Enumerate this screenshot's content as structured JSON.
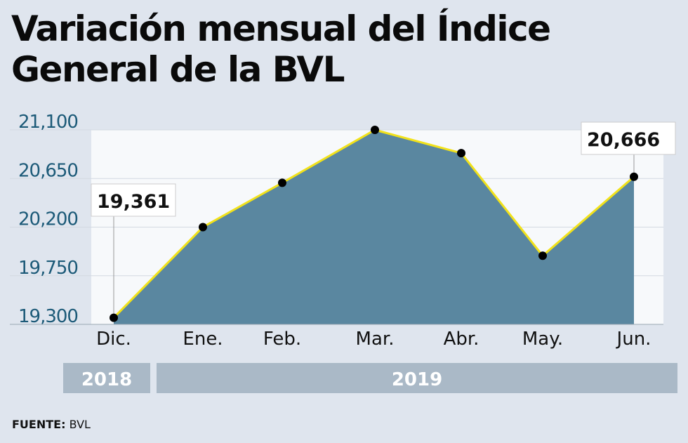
{
  "chart_data": {
    "type": "area",
    "title": "Variación mensual del Índice General de la BVL",
    "categories": [
      "Dic.",
      "Ene.",
      "Feb.",
      "Mar.",
      "Abr.",
      "May.",
      "Jun."
    ],
    "values": [
      19361,
      20200,
      20610,
      21100,
      20885,
      19935,
      20666
    ],
    "year_groups": [
      {
        "label": "2018",
        "categories": [
          "Dic."
        ]
      },
      {
        "label": "2019",
        "categories": [
          "Ene.",
          "Feb.",
          "Mar.",
          "Abr.",
          "May.",
          "Jun."
        ]
      }
    ],
    "yticks": [
      19300,
      19750,
      20200,
      20650,
      21100
    ],
    "ytick_labels": [
      "19,300",
      "19,750",
      "20,200",
      "20,650",
      "21,100"
    ],
    "ylim": [
      19300,
      21100
    ],
    "annotations": [
      {
        "category": "Dic.",
        "label": "19,361"
      },
      {
        "category": "Jun.",
        "label": "20,666"
      }
    ],
    "grid": true,
    "colors": {
      "fill": "#5a87a0",
      "line": "#f2e21a",
      "marker": "#000000",
      "axis_labels": "#1c5a78",
      "year_bar": "#aab9c7",
      "plot_bg": "#f7f9fb",
      "background": "#dfe5ee"
    }
  },
  "source": {
    "label": "FUENTE:",
    "value": "BVL"
  }
}
